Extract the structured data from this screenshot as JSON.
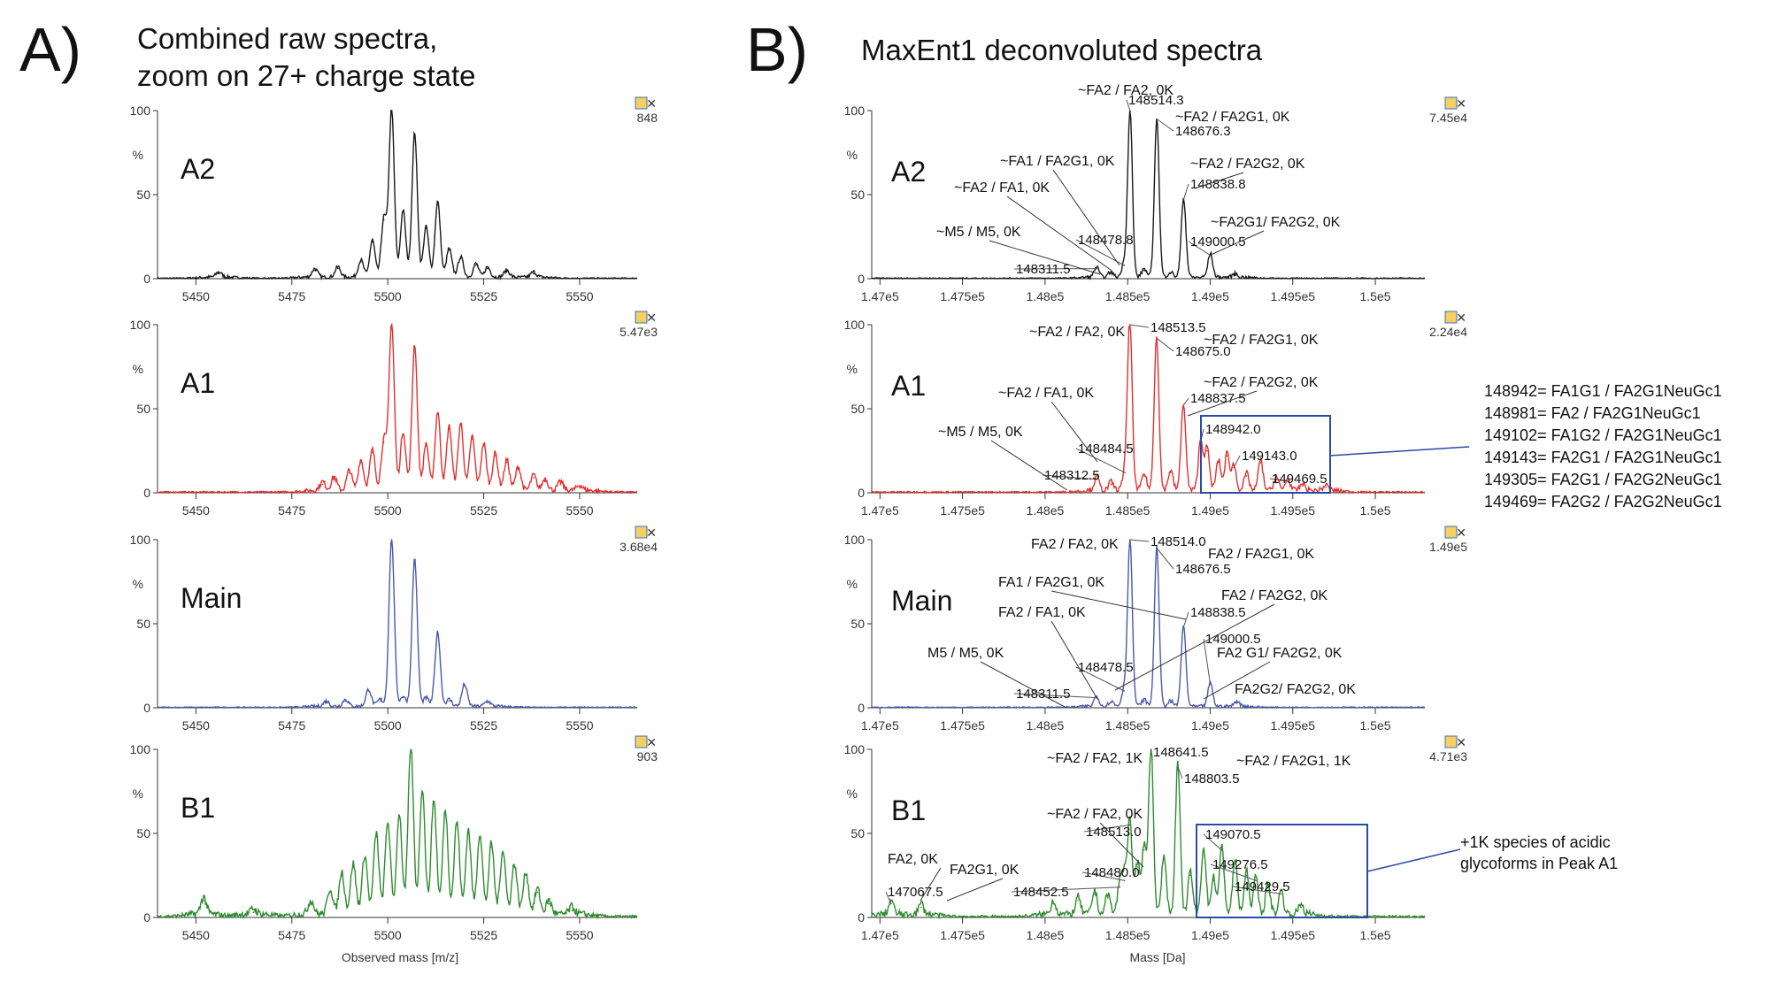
{
  "panelA": {
    "letter": "A)",
    "title1": "Combined raw spectra,",
    "title2": "zoom on 27+ charge state",
    "xaxis_label": "Observed mass [m/z]"
  },
  "panelB": {
    "letter": "B)",
    "title": "MaxEnt1 deconvoluted spectra",
    "xaxis_label": "Mass [Da]"
  },
  "colors": {
    "A2": "#1a1a1a",
    "A1": "#e03030",
    "Main": "#4a5aa8",
    "B1": "#2e8b2e",
    "box": "#2b4aa8"
  },
  "y_ticks": [
    "0",
    "50",
    "100"
  ],
  "y_unit": "%",
  "chart_data": [
    {
      "type": "line",
      "name": "A2",
      "panel": "A",
      "x_ticks": [
        "5450",
        "5475",
        "5500",
        "5525",
        "5550"
      ],
      "xlim": [
        5440,
        5565
      ],
      "ylim": [
        0,
        100
      ],
      "scale": "848",
      "series": [
        {
          "name": "A2",
          "peaks": [
            {
              "x": 5456,
              "y": 3
            },
            {
              "x": 5481,
              "y": 5
            },
            {
              "x": 5487,
              "y": 6
            },
            {
              "x": 5493,
              "y": 10
            },
            {
              "x": 5496,
              "y": 22
            },
            {
              "x": 5499,
              "y": 35
            },
            {
              "x": 5501,
              "y": 100
            },
            {
              "x": 5504,
              "y": 40
            },
            {
              "x": 5507,
              "y": 86
            },
            {
              "x": 5510,
              "y": 30
            },
            {
              "x": 5513,
              "y": 45
            },
            {
              "x": 5516,
              "y": 17
            },
            {
              "x": 5519,
              "y": 12
            },
            {
              "x": 5523,
              "y": 8
            },
            {
              "x": 5526,
              "y": 6
            },
            {
              "x": 5531,
              "y": 4
            },
            {
              "x": 5538,
              "y": 3
            }
          ]
        }
      ]
    },
    {
      "type": "line",
      "name": "A1",
      "panel": "A",
      "x_ticks": [
        "5450",
        "5475",
        "5500",
        "5525",
        "5550"
      ],
      "xlim": [
        5440,
        5565
      ],
      "ylim": [
        0,
        100
      ],
      "scale": "5.47e3",
      "series": [
        {
          "name": "A1",
          "peaks": [
            {
              "x": 5483,
              "y": 5
            },
            {
              "x": 5486,
              "y": 8
            },
            {
              "x": 5490,
              "y": 12
            },
            {
              "x": 5493,
              "y": 18
            },
            {
              "x": 5496,
              "y": 24
            },
            {
              "x": 5499,
              "y": 30
            },
            {
              "x": 5501,
              "y": 100
            },
            {
              "x": 5504,
              "y": 35
            },
            {
              "x": 5507,
              "y": 87
            },
            {
              "x": 5510,
              "y": 28
            },
            {
              "x": 5513,
              "y": 47
            },
            {
              "x": 5516,
              "y": 38
            },
            {
              "x": 5519,
              "y": 40
            },
            {
              "x": 5522,
              "y": 32
            },
            {
              "x": 5525,
              "y": 28
            },
            {
              "x": 5528,
              "y": 22
            },
            {
              "x": 5531,
              "y": 18
            },
            {
              "x": 5534,
              "y": 14
            },
            {
              "x": 5538,
              "y": 9
            },
            {
              "x": 5541,
              "y": 7
            },
            {
              "x": 5545,
              "y": 5
            },
            {
              "x": 5550,
              "y": 3
            }
          ]
        }
      ]
    },
    {
      "type": "line",
      "name": "Main",
      "panel": "A",
      "x_ticks": [
        "5450",
        "5475",
        "5500",
        "5525",
        "5550"
      ],
      "xlim": [
        5440,
        5565
      ],
      "ylim": [
        0,
        100
      ],
      "scale": "3.68e4",
      "series": [
        {
          "name": "Main",
          "peaks": [
            {
              "x": 5484,
              "y": 3
            },
            {
              "x": 5489,
              "y": 4
            },
            {
              "x": 5495,
              "y": 10
            },
            {
              "x": 5498,
              "y": 4
            },
            {
              "x": 5501,
              "y": 100
            },
            {
              "x": 5504,
              "y": 6
            },
            {
              "x": 5507,
              "y": 88
            },
            {
              "x": 5510,
              "y": 5
            },
            {
              "x": 5513,
              "y": 44
            },
            {
              "x": 5516,
              "y": 4
            },
            {
              "x": 5520,
              "y": 13
            },
            {
              "x": 5526,
              "y": 3
            }
          ]
        }
      ]
    },
    {
      "type": "line",
      "name": "B1",
      "panel": "A",
      "x_ticks": [
        "5450",
        "5475",
        "5500",
        "5525",
        "5550"
      ],
      "xlim": [
        5440,
        5565
      ],
      "ylim": [
        0,
        100
      ],
      "scale": "903",
      "series": [
        {
          "name": "B1",
          "peaks": [
            {
              "x": 5452,
              "y": 10
            },
            {
              "x": 5465,
              "y": 3
            },
            {
              "x": 5480,
              "y": 8
            },
            {
              "x": 5485,
              "y": 15
            },
            {
              "x": 5488,
              "y": 25
            },
            {
              "x": 5491,
              "y": 30
            },
            {
              "x": 5494,
              "y": 35
            },
            {
              "x": 5497,
              "y": 48
            },
            {
              "x": 5500,
              "y": 55
            },
            {
              "x": 5503,
              "y": 60
            },
            {
              "x": 5506,
              "y": 100
            },
            {
              "x": 5509,
              "y": 75
            },
            {
              "x": 5512,
              "y": 68
            },
            {
              "x": 5515,
              "y": 62
            },
            {
              "x": 5518,
              "y": 55
            },
            {
              "x": 5521,
              "y": 50
            },
            {
              "x": 5524,
              "y": 48
            },
            {
              "x": 5527,
              "y": 42
            },
            {
              "x": 5530,
              "y": 38
            },
            {
              "x": 5533,
              "y": 30
            },
            {
              "x": 5536,
              "y": 25
            },
            {
              "x": 5539,
              "y": 15
            },
            {
              "x": 5542,
              "y": 8
            },
            {
              "x": 5548,
              "y": 4
            }
          ]
        }
      ]
    },
    {
      "type": "line",
      "name": "A2",
      "panel": "B",
      "x_ticks": [
        "1.47e5",
        "1.475e5",
        "1.48e5",
        "1.485e5",
        "1.49e5",
        "1.495e5",
        "1.5e5"
      ],
      "xlim": [
        146950,
        150300
      ],
      "ylim": [
        0,
        100
      ],
      "scale": "7.45e4",
      "series": [
        {
          "name": "A2",
          "peaks": [
            {
              "x": 148311.5,
              "y": 6
            },
            {
              "x": 148398,
              "y": 3
            },
            {
              "x": 148478.8,
              "y": 8
            },
            {
              "x": 148514.3,
              "y": 100
            },
            {
              "x": 148600,
              "y": 5
            },
            {
              "x": 148676.3,
              "y": 95
            },
            {
              "x": 148760,
              "y": 3
            },
            {
              "x": 148838.8,
              "y": 47
            },
            {
              "x": 149000.5,
              "y": 14
            },
            {
              "x": 149150,
              "y": 2
            }
          ]
        }
      ],
      "labels": [
        {
          "x": 148514.3,
          "y": 100,
          "text": "148514.3"
        },
        {
          "x": 148676.3,
          "y": 95,
          "text": "148676.3"
        },
        {
          "x": 148838.8,
          "y": 47,
          "text": "148838.8"
        },
        {
          "x": 149000.5,
          "y": 14,
          "text": "149000.5"
        },
        {
          "x": 148478.8,
          "y": 8,
          "text": "148478.8"
        },
        {
          "x": 148311.5,
          "y": 6,
          "text": "148311.5"
        }
      ],
      "annotations": [
        "~FA2 / FA2, 0K",
        "~FA2 / FA2G1, 0K",
        "~FA1 / FA2G1, 0K",
        "~FA2 / FA2G2, 0K",
        "~FA2 / FA1, 0K",
        "~FA2G1/ FA2G2, 0K",
        "~M5 / M5, 0K"
      ]
    },
    {
      "type": "line",
      "name": "A1",
      "panel": "B",
      "x_ticks": [
        "1.47e5",
        "1.475e5",
        "1.48e5",
        "1.485e5",
        "1.49e5",
        "1.495e5",
        "1.5e5"
      ],
      "xlim": [
        146950,
        150300
      ],
      "ylim": [
        0,
        100
      ],
      "scale": "2.24e4",
      "series": [
        {
          "name": "A1",
          "peaks": [
            {
              "x": 148312.5,
              "y": 8
            },
            {
              "x": 148400,
              "y": 5
            },
            {
              "x": 148484.5,
              "y": 12
            },
            {
              "x": 148513.5,
              "y": 100
            },
            {
              "x": 148600,
              "y": 10
            },
            {
              "x": 148675.0,
              "y": 92
            },
            {
              "x": 148760,
              "y": 12
            },
            {
              "x": 148837.5,
              "y": 52
            },
            {
              "x": 148942.0,
              "y": 30
            },
            {
              "x": 148981,
              "y": 25
            },
            {
              "x": 149050,
              "y": 18
            },
            {
              "x": 149102,
              "y": 22
            },
            {
              "x": 149143.0,
              "y": 15
            },
            {
              "x": 149220,
              "y": 10
            },
            {
              "x": 149305,
              "y": 18
            },
            {
              "x": 149400,
              "y": 8
            },
            {
              "x": 149469.5,
              "y": 7
            },
            {
              "x": 149560,
              "y": 4
            },
            {
              "x": 149700,
              "y": 3
            }
          ]
        }
      ],
      "labels": [
        {
          "x": 148513.5,
          "y": 100,
          "text": "148513.5"
        },
        {
          "x": 148675.0,
          "y": 92,
          "text": "148675.0"
        },
        {
          "x": 148837.5,
          "y": 52,
          "text": "148837.5"
        },
        {
          "x": 148942.0,
          "y": 30,
          "text": "148942.0"
        },
        {
          "x": 149143.0,
          "y": 15,
          "text": "149143.0"
        },
        {
          "x": 149469.5,
          "y": 7,
          "text": "149469.5"
        },
        {
          "x": 148484.5,
          "y": 12,
          "text": "148484.5"
        },
        {
          "x": 148312.5,
          "y": 8,
          "text": "148312.5"
        }
      ],
      "annotations": [
        "~FA2 / FA2, 0K",
        "~FA2 / FA2G1, 0K",
        "~FA2 / FA2G2, 0K",
        "~FA2 / FA1, 0K",
        "~M5 / M5, 0K"
      ]
    },
    {
      "type": "line",
      "name": "Main",
      "panel": "B",
      "x_ticks": [
        "1.47e5",
        "1.475e5",
        "1.48e5",
        "1.485e5",
        "1.49e5",
        "1.495e5",
        "1.5e5"
      ],
      "xlim": [
        146950,
        150300
      ],
      "ylim": [
        0,
        100
      ],
      "scale": "1.49e5",
      "series": [
        {
          "name": "Main",
          "peaks": [
            {
              "x": 148311.5,
              "y": 6
            },
            {
              "x": 148400,
              "y": 3
            },
            {
              "x": 148478.5,
              "y": 10
            },
            {
              "x": 148514.0,
              "y": 100
            },
            {
              "x": 148600,
              "y": 4
            },
            {
              "x": 148676.5,
              "y": 95
            },
            {
              "x": 148760,
              "y": 3
            },
            {
              "x": 148838.5,
              "y": 48
            },
            {
              "x": 149000.5,
              "y": 14
            },
            {
              "x": 149162,
              "y": 3
            }
          ]
        }
      ],
      "labels": [
        {
          "x": 148514.0,
          "y": 100,
          "text": "148514.0"
        },
        {
          "x": 148676.5,
          "y": 95,
          "text": "148676.5"
        },
        {
          "x": 148838.5,
          "y": 48,
          "text": "148838.5"
        },
        {
          "x": 149000.5,
          "y": 14,
          "text": "149000.5"
        },
        {
          "x": 148478.5,
          "y": 10,
          "text": "148478.5"
        },
        {
          "x": 148311.5,
          "y": 6,
          "text": "148311.5"
        }
      ],
      "annotations": [
        "FA2 / FA2, 0K",
        "FA2 / FA2G1, 0K",
        "FA1 / FA2G1, 0K",
        "FA2 / FA2G2, 0K",
        "FA2 / FA1, 0K",
        "FA2 G1/ FA2G2, 0K",
        "M5 / M5, 0K",
        "FA2G2/ FA2G2, 0K"
      ]
    },
    {
      "type": "line",
      "name": "B1",
      "panel": "B",
      "x_ticks": [
        "1.47e5",
        "1.475e5",
        "1.48e5",
        "1.485e5",
        "1.49e5",
        "1.495e5",
        "1.5e5"
      ],
      "xlim": [
        146950,
        150300
      ],
      "ylim": [
        0,
        100
      ],
      "scale": "4.71e3",
      "series": [
        {
          "name": "B1",
          "peaks": [
            {
              "x": 147067.5,
              "y": 8
            },
            {
              "x": 147250,
              "y": 6
            },
            {
              "x": 148050,
              "y": 8
            },
            {
              "x": 148200,
              "y": 10
            },
            {
              "x": 148300,
              "y": 14
            },
            {
              "x": 148380,
              "y": 12
            },
            {
              "x": 148452.5,
              "y": 18
            },
            {
              "x": 148480.0,
              "y": 22
            },
            {
              "x": 148513.0,
              "y": 55
            },
            {
              "x": 148560,
              "y": 30
            },
            {
              "x": 148600,
              "y": 40
            },
            {
              "x": 148641.5,
              "y": 100
            },
            {
              "x": 148720,
              "y": 35
            },
            {
              "x": 148803.5,
              "y": 90
            },
            {
              "x": 148880,
              "y": 25
            },
            {
              "x": 148960,
              "y": 40
            },
            {
              "x": 149020,
              "y": 22
            },
            {
              "x": 149070.5,
              "y": 40
            },
            {
              "x": 149150,
              "y": 32
            },
            {
              "x": 149220,
              "y": 25
            },
            {
              "x": 149276.5,
              "y": 22
            },
            {
              "x": 149350,
              "y": 18
            },
            {
              "x": 149429.5,
              "y": 14
            },
            {
              "x": 149550,
              "y": 6
            }
          ]
        }
      ],
      "labels": [
        {
          "x": 148641.5,
          "y": 100,
          "text": "148641.5"
        },
        {
          "x": 148803.5,
          "y": 90,
          "text": "148803.5"
        },
        {
          "x": 148513.0,
          "y": 55,
          "text": "148513.0"
        },
        {
          "x": 149070.5,
          "y": 40,
          "text": "149070.5"
        },
        {
          "x": 149276.5,
          "y": 22,
          "text": "149276.5"
        },
        {
          "x": 149429.5,
          "y": 14,
          "text": "149429.5"
        },
        {
          "x": 148480.0,
          "y": 22,
          "text": "148480.0"
        },
        {
          "x": 148452.5,
          "y": 18,
          "text": "148452.5"
        },
        {
          "x": 147067.5,
          "y": 8,
          "text": "147067.5"
        }
      ],
      "annotations": [
        "~FA2 / FA2, 1K",
        "~FA2 / FA2G1, 1K",
        "~FA2 / FA2, 0K",
        "FA2, 0K",
        "FA2G1, 0K"
      ]
    }
  ],
  "side_list": [
    "148942= FA1G1 / FA2G1NeuGc1",
    "148981= FA2 / FA2G1NeuGc1",
    "149102= FA1G2 / FA2G1NeuGc1",
    "149143= FA2G1 / FA2G1NeuGc1",
    "149305= FA2G1 / FA2G2NeuGc1",
    "149469= FA2G2 / FA2G2NeuGc1"
  ],
  "side_note": [
    "+1K species of acidic",
    "glycoforms in Peak A1"
  ]
}
